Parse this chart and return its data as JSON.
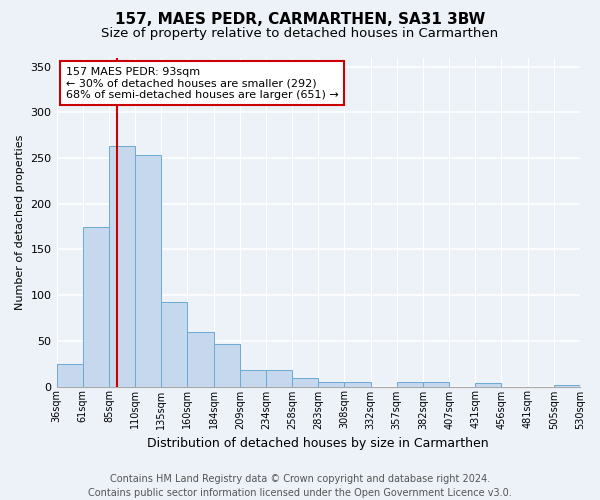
{
  "title1": "157, MAES PEDR, CARMARTHEN, SA31 3BW",
  "title2": "Size of property relative to detached houses in Carmarthen",
  "xlabel": "Distribution of detached houses by size in Carmarthen",
  "ylabel": "Number of detached properties",
  "bin_labels": [
    "36sqm",
    "61sqm",
    "85sqm",
    "110sqm",
    "135sqm",
    "160sqm",
    "184sqm",
    "209sqm",
    "234sqm",
    "258sqm",
    "283sqm",
    "308sqm",
    "332sqm",
    "357sqm",
    "382sqm",
    "407sqm",
    "431sqm",
    "456sqm",
    "481sqm",
    "505sqm",
    "530sqm"
  ],
  "bar_heights": [
    25,
    174,
    263,
    253,
    93,
    60,
    46,
    18,
    18,
    9,
    5,
    5,
    0,
    5,
    5,
    0,
    4,
    0,
    0,
    2
  ],
  "bar_color": "#c5d8ee",
  "bar_edge_color": "#6aaad4",
  "vline_color": "#cc0000",
  "annotation_text": "157 MAES PEDR: 93sqm\n← 30% of detached houses are smaller (292)\n68% of semi-detached houses are larger (651) →",
  "annotation_box_color": "#ffffff",
  "annotation_edge_color": "#cc0000",
  "ylim": [
    0,
    360
  ],
  "yticks": [
    0,
    50,
    100,
    150,
    200,
    250,
    300,
    350
  ],
  "footer": "Contains HM Land Registry data © Crown copyright and database right 2024.\nContains public sector information licensed under the Open Government Licence v3.0.",
  "background_color": "#edf1f8"
}
